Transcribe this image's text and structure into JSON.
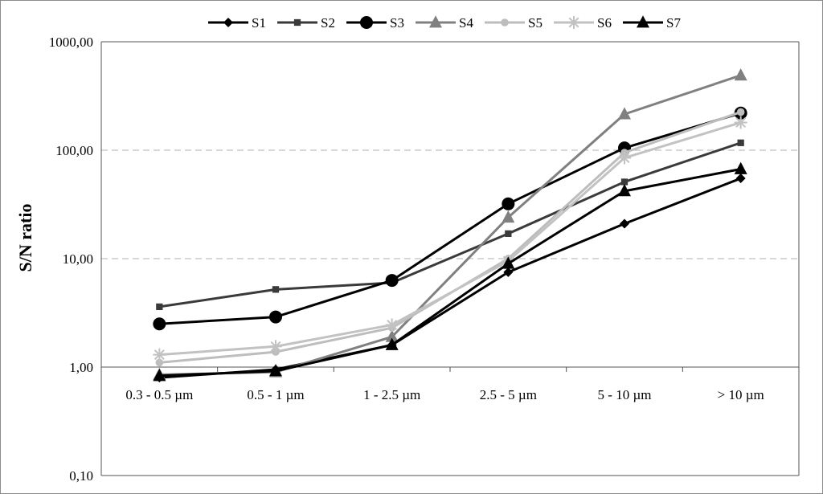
{
  "chart_data": {
    "type": "line",
    "title": "",
    "xlabel": "",
    "ylabel": "S/N ratio",
    "yscale": "log",
    "ylim": [
      0.1,
      1000
    ],
    "yticks": [
      "0,10",
      "1,00",
      "10,00",
      "100,00",
      "1000,00"
    ],
    "y_tick_values": [
      0.1,
      1,
      10,
      100,
      1000
    ],
    "categories": [
      "0.3 - 0.5 µm",
      "0.5 - 1 µm",
      "1 - 2.5 µm",
      "2.5 - 5 µm",
      "5 - 10 µm",
      "> 10 µm"
    ],
    "grid": "horizontal dashed",
    "legend_position": "top",
    "series": [
      {
        "name": "S1",
        "color": "#000000",
        "marker": "diamond",
        "values": [
          0.8,
          0.95,
          1.6,
          7.5,
          21,
          55
        ]
      },
      {
        "name": "S2",
        "color": "#3a3a3a",
        "marker": "square",
        "values": [
          3.6,
          5.2,
          6.0,
          17,
          51,
          117
        ]
      },
      {
        "name": "S3",
        "color": "#000000",
        "marker": "circle",
        "values": [
          2.5,
          2.9,
          6.3,
          32,
          105,
          220
        ]
      },
      {
        "name": "S4",
        "color": "#808080",
        "marker": "triangle",
        "values": [
          0.85,
          0.9,
          1.9,
          24,
          215,
          490
        ]
      },
      {
        "name": "S5",
        "color": "#bdbdbd",
        "marker": "circle-small",
        "values": [
          1.1,
          1.38,
          2.3,
          10,
          95,
          225
        ]
      },
      {
        "name": "S6",
        "color": "#c2c2c2",
        "marker": "star",
        "values": [
          1.3,
          1.55,
          2.45,
          9.5,
          85,
          180
        ]
      },
      {
        "name": "S7",
        "color": "#000000",
        "marker": "triangle",
        "values": [
          0.83,
          0.92,
          1.6,
          9,
          42,
          67
        ]
      }
    ]
  }
}
